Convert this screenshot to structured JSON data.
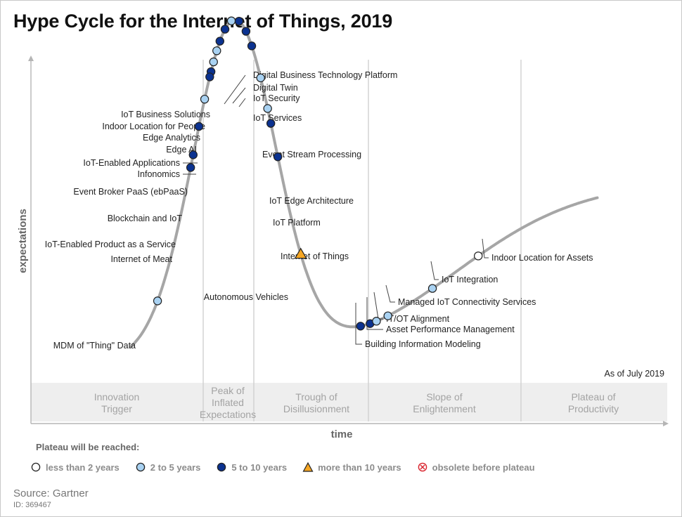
{
  "title": "Hype Cycle for the Internet of Things, 2019",
  "as_of": "As of July 2019",
  "source": "Source: Gartner",
  "doc_id": "ID: 369467",
  "colors": {
    "less_than_2": "#ffffff",
    "two_to_5": "#a9d2f2",
    "five_to_10": "#0b3290",
    "more_than_10": "#f6a623",
    "obsolete": "#d9232d",
    "curve": "#a6a6a6",
    "phase_band": "#eeeeee"
  },
  "chart_data": {
    "type": "hype_cycle",
    "title": "Hype Cycle for the Internet of Things, 2019",
    "xlabel": "time",
    "ylabel": "expectations",
    "phases": [
      {
        "id": "innovation",
        "lines": [
          "Innovation",
          "Trigger"
        ]
      },
      {
        "id": "peak",
        "lines": [
          "Peak of",
          "Inflated",
          "Expectations"
        ]
      },
      {
        "id": "trough",
        "lines": [
          "Trough of",
          "Disillusionment"
        ]
      },
      {
        "id": "slope",
        "lines": [
          "Slope of",
          "Enlightenment"
        ]
      },
      {
        "id": "plateau",
        "lines": [
          "Plateau of",
          "Productivity"
        ]
      }
    ],
    "legend_title": "Plateau will be reached:",
    "legend": [
      {
        "key": "lt2",
        "label": "less than 2 years"
      },
      {
        "key": "2to5",
        "label": "2 to 5 years"
      },
      {
        "key": "5to10",
        "label": "5 to 10 years"
      },
      {
        "key": "gt10",
        "label": "more than 10 years"
      },
      {
        "key": "obs",
        "label": "obsolete before plateau"
      }
    ],
    "technologies": [
      {
        "name": "Digital Business Technology Platform",
        "t": 0.315,
        "plateau": "2to5"
      },
      {
        "name": "Digital Twin",
        "t": 0.327,
        "plateau": "5to10"
      },
      {
        "name": "IoT Security",
        "t": 0.338,
        "plateau": "5to10"
      },
      {
        "name": "IoT Business Solutions",
        "t": 0.305,
        "plateau": "5to10"
      },
      {
        "name": "IoT Services",
        "t": 0.347,
        "plateau": "5to10"
      },
      {
        "name": "Indoor Location for People",
        "t": 0.297,
        "plateau": "5to10"
      },
      {
        "name": "Edge Analytics",
        "t": 0.292,
        "plateau": "2to5"
      },
      {
        "name": "Edge AI",
        "t": 0.287,
        "plateau": "2to5"
      },
      {
        "name": "Event Stream Processing",
        "t": 0.361,
        "plateau": "2to5"
      },
      {
        "name": "IoT-Enabled Applications",
        "t": 0.283,
        "plateau": "5to10"
      },
      {
        "name": "Infonomics",
        "t": 0.281,
        "plateau": "5to10"
      },
      {
        "name": "Event Broker PaaS (ebPaaS)",
        "t": 0.273,
        "plateau": "2to5"
      },
      {
        "name": "IoT Edge Architecture",
        "t": 0.372,
        "plateau": "2to5"
      },
      {
        "name": "Blockchain and IoT",
        "t": 0.264,
        "plateau": "5to10"
      },
      {
        "name": "IoT Platform",
        "t": 0.377,
        "plateau": "5to10"
      },
      {
        "name": "IoT-Enabled Product as a Service",
        "t": 0.255,
        "plateau": "5to10"
      },
      {
        "name": "Internet of Meat",
        "t": 0.251,
        "plateau": "5to10"
      },
      {
        "name": "Internet of Things",
        "t": 0.388,
        "plateau": "5to10"
      },
      {
        "name": "Autonomous Vehicles",
        "t": 0.424,
        "plateau": "gt10"
      },
      {
        "name": "MDM of \"Thing\" Data",
        "t": 0.199,
        "plateau": "2to5"
      },
      {
        "name": "Building Information Modeling",
        "t": 0.518,
        "plateau": "5to10"
      },
      {
        "name": "Asset Performance Management",
        "t": 0.533,
        "plateau": "5to10"
      },
      {
        "name": "IT/OT Alignment",
        "t": 0.543,
        "plateau": "2to5"
      },
      {
        "name": "Managed IoT Connectivity Services",
        "t": 0.561,
        "plateau": "2to5"
      },
      {
        "name": "IoT Integration",
        "t": 0.631,
        "plateau": "2to5"
      },
      {
        "name": "Indoor Location for Assets",
        "t": 0.703,
        "plateau": "lt2"
      }
    ]
  }
}
